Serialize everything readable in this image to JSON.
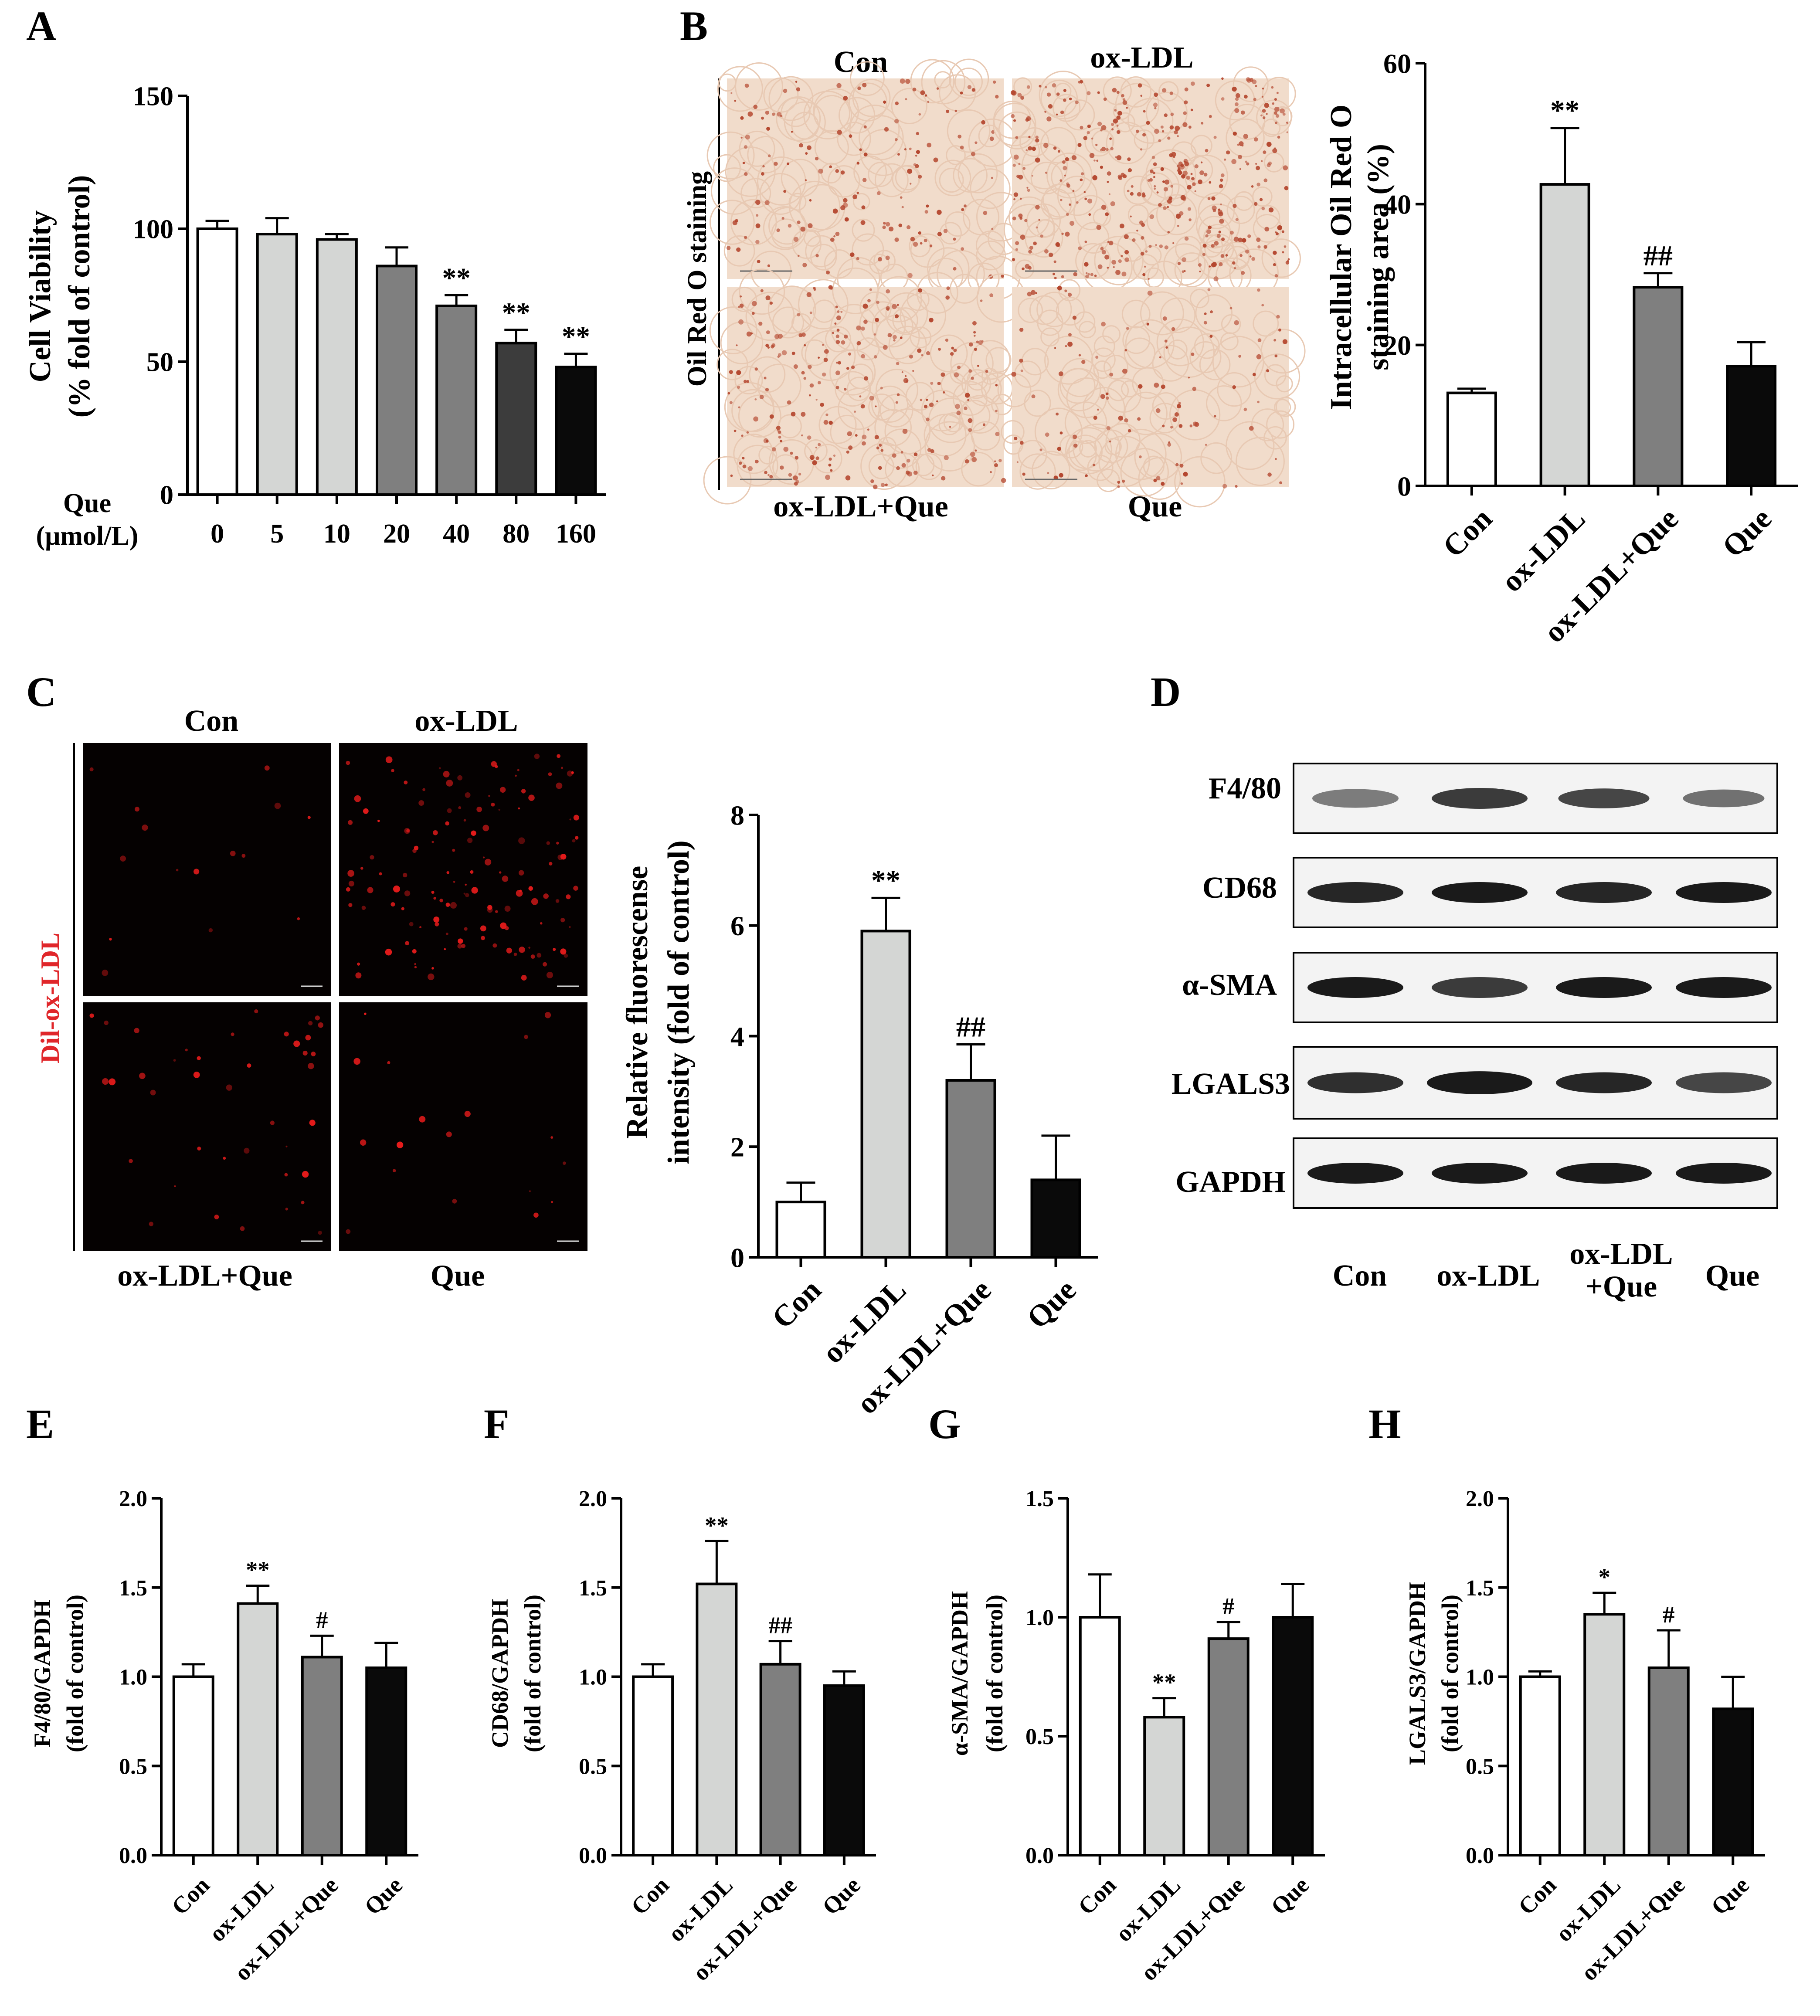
{
  "colors": {
    "white": "#ffffff",
    "light_gray": "#d4d6d4",
    "mid_gray": "#7f7f7f",
    "dark_gray": "#3c3c3c",
    "near_black": "#1f2321",
    "black": "#0a0a0a",
    "stain_bg": "#f1dccb",
    "stain_dot": "#b4462e",
    "fluor_bg": "#050101",
    "fluor_dot": "#e81b1b",
    "dil_label": "#e0262a",
    "blot_bg": "#f3f3f3",
    "band": "#1a1a1a"
  },
  "panels": {
    "A": {
      "letter": "A"
    },
    "B": {
      "letter": "B",
      "image_row_label": "Oil Red O staining",
      "image_labels": [
        "Con",
        "ox-LDL",
        "ox-LDL+Que",
        "Que"
      ]
    },
    "C": {
      "letter": "C",
      "image_row_label": "Dil-ox-LDL",
      "image_labels": [
        "Con",
        "ox-LDL",
        "ox-LDL+Que",
        "Que"
      ]
    },
    "D": {
      "letter": "D",
      "proteins": [
        "F4/80",
        "CD68",
        "α-SMA",
        "LGALS3",
        "GAPDH"
      ],
      "lanes": [
        "Con",
        "ox-LDL",
        "ox-LDL",
        "+Que",
        "Que"
      ]
    },
    "E": {
      "letter": "E"
    },
    "F": {
      "letter": "F"
    },
    "G": {
      "letter": "G"
    },
    "H": {
      "letter": "H"
    }
  },
  "chart_data": [
    {
      "id": "A",
      "type": "bar",
      "ylabel": [
        "Cell Viability",
        "(% fold of control)"
      ],
      "xlabel": [
        "Que",
        "(μmol/L)"
      ],
      "categories": [
        "0",
        "5",
        "10",
        "20",
        "40",
        "80",
        "160"
      ],
      "values": [
        100,
        98,
        96,
        86,
        71,
        57,
        48
      ],
      "errors": [
        3,
        6,
        2,
        7,
        4,
        5,
        5
      ],
      "annotations": [
        "",
        "",
        "",
        "",
        "**",
        "**",
        "**"
      ],
      "ylim": [
        0,
        150
      ],
      "yticks": [
        "0",
        "50",
        "100",
        "150"
      ]
    },
    {
      "id": "B",
      "type": "bar",
      "ylabel": [
        "Intracellular Oil Red O",
        "staining area (%)"
      ],
      "categories": [
        "Con",
        "ox-LDL",
        "ox-LDL+Que",
        "Que"
      ],
      "values": [
        13.2,
        42.8,
        28.2,
        17.0
      ],
      "errors": [
        0.6,
        8.0,
        2.0,
        3.4
      ],
      "annotations": [
        "",
        "**",
        "##",
        ""
      ],
      "ylim": [
        0,
        60
      ],
      "yticks": [
        "0",
        "20",
        "40",
        "60"
      ]
    },
    {
      "id": "C",
      "type": "bar",
      "ylabel": [
        "Relative fluorescense",
        "intensity (fold of control)"
      ],
      "categories": [
        "Con",
        "ox-LDL",
        "ox-LDL+Que",
        "Que"
      ],
      "values": [
        1.0,
        5.9,
        3.2,
        1.4
      ],
      "errors": [
        0.35,
        0.6,
        0.65,
        0.8
      ],
      "annotations": [
        "",
        "**",
        "##",
        ""
      ],
      "ylim": [
        0,
        8
      ],
      "yticks": [
        "0",
        "2",
        "4",
        "6",
        "8"
      ]
    },
    {
      "id": "E",
      "type": "bar",
      "ylabel": [
        "F4/80/GAPDH",
        "(fold of control)"
      ],
      "categories": [
        "Con",
        "ox-LDL",
        "ox-LDL+Que",
        "Que"
      ],
      "values": [
        1.0,
        1.41,
        1.11,
        1.05
      ],
      "errors": [
        0.07,
        0.1,
        0.12,
        0.14
      ],
      "annotations": [
        "",
        "**",
        "#",
        ""
      ],
      "ylim": [
        0,
        2.0
      ],
      "yticks": [
        "0.0",
        "0.5",
        "1.0",
        "1.5",
        "2.0"
      ]
    },
    {
      "id": "F",
      "type": "bar",
      "ylabel": [
        "CD68/GAPDH",
        "(fold of control)"
      ],
      "categories": [
        "Con",
        "ox-LDL",
        "ox-LDL+Que",
        "Que"
      ],
      "values": [
        1.0,
        1.52,
        1.07,
        0.95
      ],
      "errors": [
        0.07,
        0.24,
        0.13,
        0.08
      ],
      "annotations": [
        "",
        "**",
        "##",
        ""
      ],
      "ylim": [
        0,
        2.0
      ],
      "yticks": [
        "0.0",
        "0.5",
        "1.0",
        "1.5",
        "2.0"
      ]
    },
    {
      "id": "G",
      "type": "bar",
      "ylabel": [
        "α-SMA/GAPDH",
        "(fold of control)"
      ],
      "categories": [
        "Con",
        "ox-LDL",
        "ox-LDL+Que",
        "Que"
      ],
      "values": [
        1.0,
        0.58,
        0.91,
        1.0
      ],
      "errors": [
        0.18,
        0.08,
        0.07,
        0.14
      ],
      "annotations": [
        "",
        "**",
        "#",
        ""
      ],
      "ylim": [
        0,
        1.5
      ],
      "yticks": [
        "0.0",
        "0.5",
        "1.0",
        "1.5"
      ]
    },
    {
      "id": "H",
      "type": "bar",
      "ylabel": [
        "LGALS3/GAPDH",
        "(fold of control)"
      ],
      "categories": [
        "Con",
        "ox-LDL",
        "ox-LDL+Que",
        "Que"
      ],
      "values": [
        1.0,
        1.35,
        1.05,
        0.82
      ],
      "errors": [
        0.03,
        0.12,
        0.21,
        0.18
      ],
      "annotations": [
        "",
        "*",
        "#",
        ""
      ],
      "ylim": [
        0,
        2.0
      ],
      "yticks": [
        "0.0",
        "0.5",
        "1.0",
        "1.5",
        "2.0"
      ]
    }
  ]
}
